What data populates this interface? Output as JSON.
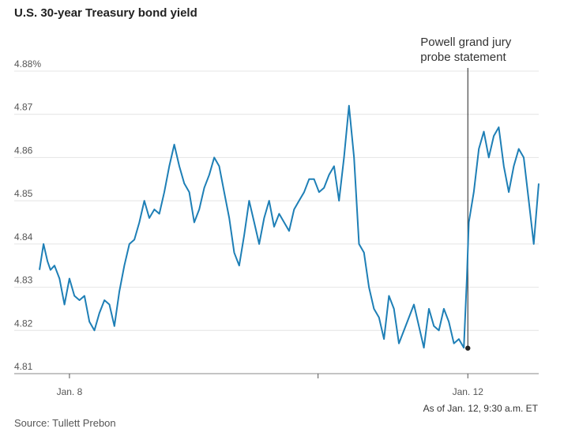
{
  "title": "U.S. 30-year Treasury bond yield",
  "source": "Source: Tullett Prebon",
  "note": "As of Jan. 12, 9:30 a.m. ET",
  "chart_data": {
    "type": "line",
    "title": "U.S. 30-year Treasury bond yield",
    "xlabel": "",
    "ylabel": "",
    "ylim": [
      4.81,
      4.88
    ],
    "y_ticks": [
      "4.88%",
      "4.87",
      "4.86",
      "4.85",
      "4.84",
      "4.83",
      "4.82",
      "4.81"
    ],
    "y_tick_values": [
      4.88,
      4.87,
      4.86,
      4.85,
      4.84,
      4.83,
      4.82,
      4.81
    ],
    "x_ticks": [
      {
        "label": "Jan. 8",
        "t": 0.06
      },
      {
        "label": "",
        "t": 0.558
      },
      {
        "label": "Jan. 12",
        "t": 0.858
      }
    ],
    "grid": true,
    "line_color": "#1e7fb6",
    "annotation": {
      "text_lines": [
        "Powell grand jury",
        "probe statement"
      ],
      "t": 0.858,
      "y": 4.8159
    },
    "series": [
      {
        "name": "",
        "x": [
          0.0,
          0.008,
          0.016,
          0.022,
          0.03,
          0.04,
          0.05,
          0.06,
          0.07,
          0.08,
          0.09,
          0.1,
          0.11,
          0.12,
          0.13,
          0.14,
          0.15,
          0.16,
          0.17,
          0.18,
          0.19,
          0.2,
          0.21,
          0.22,
          0.23,
          0.24,
          0.25,
          0.26,
          0.27,
          0.28,
          0.29,
          0.3,
          0.31,
          0.32,
          0.33,
          0.34,
          0.35,
          0.36,
          0.37,
          0.38,
          0.39,
          0.4,
          0.41,
          0.42,
          0.43,
          0.44,
          0.45,
          0.46,
          0.47,
          0.48,
          0.49,
          0.5,
          0.51,
          0.52,
          0.53,
          0.54,
          0.55,
          0.56,
          0.57,
          0.58,
          0.59,
          0.6,
          0.61,
          0.62,
          0.63,
          0.64,
          0.65,
          0.66,
          0.67,
          0.68,
          0.69,
          0.7,
          0.71,
          0.72,
          0.73,
          0.74,
          0.75,
          0.76,
          0.77,
          0.78,
          0.79,
          0.8,
          0.81,
          0.82,
          0.83,
          0.84,
          0.85,
          0.856,
          0.86,
          0.87,
          0.88,
          0.89,
          0.9,
          0.91,
          0.92,
          0.93,
          0.94,
          0.95,
          0.96,
          0.97,
          0.98,
          0.99,
          1.0
        ],
        "y": [
          4.834,
          4.84,
          4.836,
          4.834,
          4.835,
          4.832,
          4.826,
          4.832,
          4.828,
          4.827,
          4.828,
          4.822,
          4.82,
          4.824,
          4.827,
          4.826,
          4.821,
          4.829,
          4.835,
          4.84,
          4.841,
          4.845,
          4.85,
          4.846,
          4.848,
          4.847,
          4.852,
          4.858,
          4.863,
          4.858,
          4.854,
          4.852,
          4.845,
          4.848,
          4.853,
          4.856,
          4.86,
          4.858,
          4.852,
          4.846,
          4.838,
          4.835,
          4.842,
          4.85,
          4.845,
          4.84,
          4.846,
          4.85,
          4.844,
          4.847,
          4.845,
          4.843,
          4.848,
          4.85,
          4.852,
          4.855,
          4.855,
          4.852,
          4.853,
          4.856,
          4.858,
          4.85,
          4.86,
          4.872,
          4.86,
          4.84,
          4.838,
          4.83,
          4.825,
          4.823,
          4.818,
          4.828,
          4.825,
          4.817,
          4.82,
          4.823,
          4.826,
          4.821,
          4.816,
          4.825,
          4.821,
          4.82,
          4.825,
          4.822,
          4.817,
          4.818,
          4.816,
          4.832,
          4.845,
          4.852,
          4.862,
          4.866,
          4.86,
          4.865,
          4.867,
          4.858,
          4.852,
          4.858,
          4.862,
          4.86,
          4.85,
          4.84,
          4.854
        ]
      }
    ]
  }
}
